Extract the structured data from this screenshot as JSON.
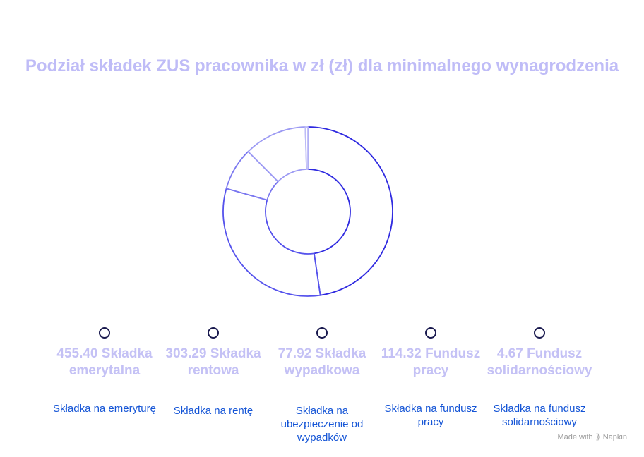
{
  "chart_data": {
    "type": "pie",
    "title": "Podział składek ZUS pracownika w zł (zł) dla minimalnego wynagrodzenia",
    "categories": [
      "455.40 Składka emerytalna",
      "303.29 Składka rentowa",
      "77.92 Składka wypadkowa",
      "114.32 Fundusz pracy",
      "4.67 Fundusz solidarnościowy"
    ],
    "values": [
      455.4,
      303.29,
      77.92,
      114.32,
      4.67
    ],
    "donut": true,
    "legend_position": "bottom",
    "slice_colors": [
      "#2f2ae0",
      "#5552ec",
      "#7b78f0",
      "#9c9af3",
      "#bdbbf7"
    ],
    "legend": [
      {
        "heading": "455.40 Składka emerytalna",
        "description": "Składka na emeryturę"
      },
      {
        "heading": "303.29 Składka rentowa",
        "description": "Składka na rentę"
      },
      {
        "heading": "77.92 Składka wypadkowa",
        "description": "Składka na ubezpieczenie od wypadków"
      },
      {
        "heading": "114.32 Fundusz pracy",
        "description": "Składka na fundusz pracy"
      },
      {
        "heading": "4.67 Fundusz solidarnościowy",
        "description": "Składka na fundusz solidarnościowy"
      }
    ]
  },
  "watermark": {
    "text": "Made with",
    "brand": "Napkin",
    "icon": "napkin-logo-icon"
  },
  "colors": {
    "title": "#bfbcf7",
    "legend_heading": "#c4c1f5",
    "legend_description": "#1555d6",
    "marker_border": "#1a1a4f"
  }
}
